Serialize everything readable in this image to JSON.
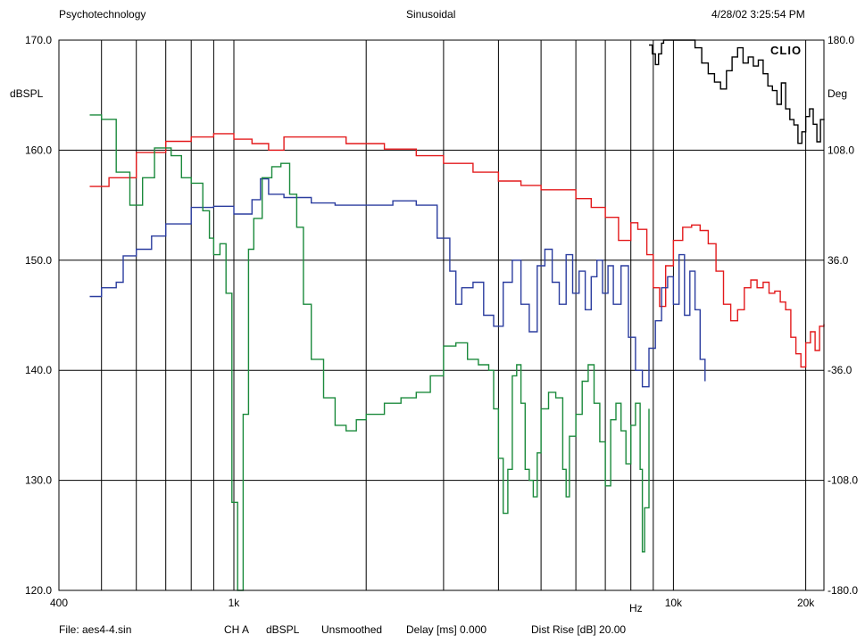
{
  "header": {
    "left": "Psychotechnology",
    "center": "Sinusoidal",
    "right": "4/28/02 3:25:54 PM"
  },
  "brand": "CLIO",
  "footer": {
    "file": "File: aes4-4.sin",
    "channel": "CH A",
    "units": "dBSPL",
    "smoothing": "Unsmoothed",
    "delay": "Delay [ms] 0.000",
    "dist_rise": "Dist Rise [dB] 20.00"
  },
  "chart_data": {
    "type": "line",
    "title": "",
    "xlabel": "Hz",
    "ylabel": "dBSPL",
    "y2label": "Deg",
    "x_scale": "log",
    "xlim": [
      400,
      22000
    ],
    "ylim": [
      120,
      170
    ],
    "y2lim": [
      -180,
      180
    ],
    "grid": true,
    "x_tick_labels": [
      {
        "value": 400,
        "label": "400"
      },
      {
        "value": 1000,
        "label": "1k"
      },
      {
        "value": 10000,
        "label": "10k"
      },
      {
        "value": 20000,
        "label": "20k"
      }
    ],
    "x_gridlines": [
      500,
      600,
      700,
      800,
      900,
      1000,
      2000,
      3000,
      4000,
      5000,
      6000,
      7000,
      8000,
      9000,
      10000,
      20000
    ],
    "y_ticks": [
      {
        "value": 120,
        "label": "120.0"
      },
      {
        "value": 130,
        "label": "130.0"
      },
      {
        "value": 140,
        "label": "140.0"
      },
      {
        "value": 150,
        "label": "150.0"
      },
      {
        "value": 160,
        "label": "160.0"
      },
      {
        "value": 170,
        "label": "170.0"
      }
    ],
    "y2_ticks": [
      {
        "value": -180,
        "label": "-180.0"
      },
      {
        "value": -108,
        "label": "-108.0"
      },
      {
        "value": -36,
        "label": "-36.0"
      },
      {
        "value": 36,
        "label": "36.0"
      },
      {
        "value": 108,
        "label": "108.0"
      },
      {
        "value": 180,
        "label": "180.0"
      }
    ],
    "series": [
      {
        "color": "#e31a1c",
        "axis": "left",
        "points": [
          [
            470,
            156.7
          ],
          [
            520,
            157.5
          ],
          [
            600,
            159.8
          ],
          [
            700,
            160.8
          ],
          [
            800,
            161.2
          ],
          [
            900,
            161.5
          ],
          [
            1000,
            161.0
          ],
          [
            1100,
            160.6
          ],
          [
            1200,
            160.0
          ],
          [
            1300,
            161.2
          ],
          [
            1500,
            161.2
          ],
          [
            1800,
            160.6
          ],
          [
            2200,
            160.1
          ],
          [
            2600,
            159.5
          ],
          [
            3000,
            158.8
          ],
          [
            3500,
            158.0
          ],
          [
            4000,
            157.2
          ],
          [
            4500,
            156.8
          ],
          [
            5000,
            156.4
          ],
          [
            6000,
            155.6
          ],
          [
            6500,
            154.8
          ],
          [
            7000,
            153.9
          ],
          [
            7500,
            151.8
          ],
          [
            8000,
            153.4
          ],
          [
            8300,
            152.8
          ],
          [
            8700,
            150.5
          ],
          [
            9000,
            147.5
          ],
          [
            9300,
            145.8
          ],
          [
            9600,
            149.5
          ],
          [
            10000,
            151.8
          ],
          [
            10500,
            153.0
          ],
          [
            11000,
            153.2
          ],
          [
            11500,
            152.7
          ],
          [
            12000,
            151.5
          ],
          [
            12500,
            149.0
          ],
          [
            13000,
            146.0
          ],
          [
            13500,
            144.5
          ],
          [
            14000,
            145.5
          ],
          [
            14500,
            147.5
          ],
          [
            15000,
            148.2
          ],
          [
            15500,
            147.5
          ],
          [
            16000,
            148.0
          ],
          [
            16500,
            147.0
          ],
          [
            17000,
            147.2
          ],
          [
            17500,
            146.2
          ],
          [
            18000,
            145.5
          ],
          [
            18500,
            143.0
          ],
          [
            19000,
            141.5
          ],
          [
            19500,
            140.3
          ],
          [
            20000,
            142.5
          ],
          [
            20500,
            143.5
          ],
          [
            21000,
            141.8
          ],
          [
            21500,
            144.0
          ],
          [
            22000,
            144.2
          ]
        ]
      },
      {
        "color": "#2b3d9f",
        "axis": "left",
        "points": [
          [
            470,
            146.7
          ],
          [
            500,
            147.5
          ],
          [
            540,
            148.0
          ],
          [
            560,
            150.4
          ],
          [
            600,
            151.0
          ],
          [
            650,
            152.2
          ],
          [
            700,
            153.3
          ],
          [
            800,
            154.8
          ],
          [
            900,
            154.9
          ],
          [
            1000,
            154.2
          ],
          [
            1100,
            155.5
          ],
          [
            1150,
            157.4
          ],
          [
            1200,
            156.0
          ],
          [
            1300,
            155.7
          ],
          [
            1500,
            155.2
          ],
          [
            1700,
            155.0
          ],
          [
            2000,
            155.0
          ],
          [
            2300,
            155.4
          ],
          [
            2600,
            155.0
          ],
          [
            2900,
            152.0
          ],
          [
            3100,
            149.0
          ],
          [
            3200,
            146.0
          ],
          [
            3300,
            147.5
          ],
          [
            3500,
            148.0
          ],
          [
            3700,
            145.0
          ],
          [
            3900,
            144.0
          ],
          [
            4100,
            148.0
          ],
          [
            4300,
            150.0
          ],
          [
            4500,
            146.0
          ],
          [
            4700,
            143.5
          ],
          [
            4900,
            149.5
          ],
          [
            5100,
            151.0
          ],
          [
            5300,
            148.0
          ],
          [
            5500,
            146.0
          ],
          [
            5700,
            150.5
          ],
          [
            5900,
            147.0
          ],
          [
            6100,
            149.0
          ],
          [
            6300,
            145.5
          ],
          [
            6500,
            148.5
          ],
          [
            6700,
            150.0
          ],
          [
            6900,
            147.0
          ],
          [
            7100,
            149.5
          ],
          [
            7300,
            146.0
          ],
          [
            7600,
            149.5
          ],
          [
            7900,
            143.0
          ],
          [
            8200,
            140.0
          ],
          [
            8500,
            138.5
          ],
          [
            8800,
            142.0
          ],
          [
            9100,
            144.5
          ],
          [
            9400,
            147.5
          ],
          [
            9700,
            148.5
          ],
          [
            10000,
            146.0
          ],
          [
            10300,
            150.5
          ],
          [
            10600,
            145.0
          ],
          [
            10900,
            149.0
          ],
          [
            11200,
            145.5
          ],
          [
            11500,
            141.0
          ],
          [
            11800,
            139.0
          ]
        ]
      },
      {
        "color": "#1b8a3c",
        "axis": "left",
        "points": [
          [
            470,
            163.2
          ],
          [
            500,
            162.8
          ],
          [
            540,
            158.0
          ],
          [
            580,
            155.0
          ],
          [
            620,
            157.5
          ],
          [
            660,
            160.2
          ],
          [
            720,
            159.5
          ],
          [
            760,
            157.5
          ],
          [
            800,
            157.0
          ],
          [
            850,
            154.5
          ],
          [
            880,
            152.0
          ],
          [
            900,
            150.5
          ],
          [
            930,
            151.5
          ],
          [
            960,
            147.0
          ],
          [
            990,
            128.0
          ],
          [
            1020,
            120.0
          ],
          [
            1050,
            136.0
          ],
          [
            1080,
            151.0
          ],
          [
            1110,
            153.8
          ],
          [
            1160,
            157.5
          ],
          [
            1220,
            158.5
          ],
          [
            1280,
            158.8
          ],
          [
            1340,
            156.0
          ],
          [
            1390,
            153.0
          ],
          [
            1440,
            146.0
          ],
          [
            1500,
            141.0
          ],
          [
            1600,
            137.5
          ],
          [
            1700,
            135.0
          ],
          [
            1800,
            134.5
          ],
          [
            1900,
            135.5
          ],
          [
            2000,
            136.0
          ],
          [
            2200,
            137.0
          ],
          [
            2400,
            137.5
          ],
          [
            2600,
            138.0
          ],
          [
            2800,
            139.5
          ],
          [
            3000,
            142.2
          ],
          [
            3200,
            142.5
          ],
          [
            3400,
            141.0
          ],
          [
            3600,
            140.5
          ],
          [
            3800,
            140.0
          ],
          [
            3900,
            136.5
          ],
          [
            4000,
            132.0
          ],
          [
            4100,
            127.0
          ],
          [
            4200,
            131.0
          ],
          [
            4300,
            139.5
          ],
          [
            4400,
            140.5
          ],
          [
            4500,
            137.0
          ],
          [
            4600,
            131.0
          ],
          [
            4700,
            130.0
          ],
          [
            4800,
            128.5
          ],
          [
            4900,
            132.5
          ],
          [
            5000,
            136.5
          ],
          [
            5200,
            138.0
          ],
          [
            5400,
            137.5
          ],
          [
            5600,
            131.0
          ],
          [
            5700,
            128.5
          ],
          [
            5800,
            134.0
          ],
          [
            6000,
            136.0
          ],
          [
            6200,
            139.0
          ],
          [
            6400,
            140.5
          ],
          [
            6600,
            137.0
          ],
          [
            6800,
            133.5
          ],
          [
            7000,
            129.5
          ],
          [
            7200,
            135.5
          ],
          [
            7400,
            137.0
          ],
          [
            7600,
            134.5
          ],
          [
            7800,
            131.5
          ],
          [
            8000,
            135.0
          ],
          [
            8200,
            137.0
          ],
          [
            8400,
            131.0
          ],
          [
            8500,
            123.5
          ],
          [
            8600,
            127.5
          ],
          [
            8800,
            136.5
          ]
        ]
      },
      {
        "color": "#000000",
        "axis": "right",
        "points": [
          [
            8800,
            176.8
          ],
          [
            8950,
            171.0
          ],
          [
            9100,
            164.0
          ],
          [
            9250,
            171.0
          ],
          [
            9400,
            178.0
          ],
          [
            9500,
            180.0
          ],
          [
            10800,
            180.0
          ],
          [
            11200,
            175.0
          ],
          [
            11600,
            165.0
          ],
          [
            12000,
            158.0
          ],
          [
            12400,
            152.5
          ],
          [
            12800,
            148.0
          ],
          [
            13200,
            160.0
          ],
          [
            13600,
            169.0
          ],
          [
            14000,
            175.0
          ],
          [
            14400,
            165.0
          ],
          [
            14800,
            169.0
          ],
          [
            15200,
            163.0
          ],
          [
            15600,
            167.0
          ],
          [
            16000,
            158.0
          ],
          [
            16400,
            150.0
          ],
          [
            16800,
            147.0
          ],
          [
            17200,
            138.0
          ],
          [
            17600,
            152.0
          ],
          [
            18000,
            135.0
          ],
          [
            18400,
            128.0
          ],
          [
            18800,
            124.5
          ],
          [
            19200,
            112.5
          ],
          [
            19600,
            120.0
          ],
          [
            20000,
            130.0
          ],
          [
            20400,
            135.0
          ],
          [
            20800,
            125.0
          ],
          [
            21200,
            113.5
          ],
          [
            21600,
            128.0
          ],
          [
            22000,
            128.5
          ]
        ]
      }
    ]
  }
}
